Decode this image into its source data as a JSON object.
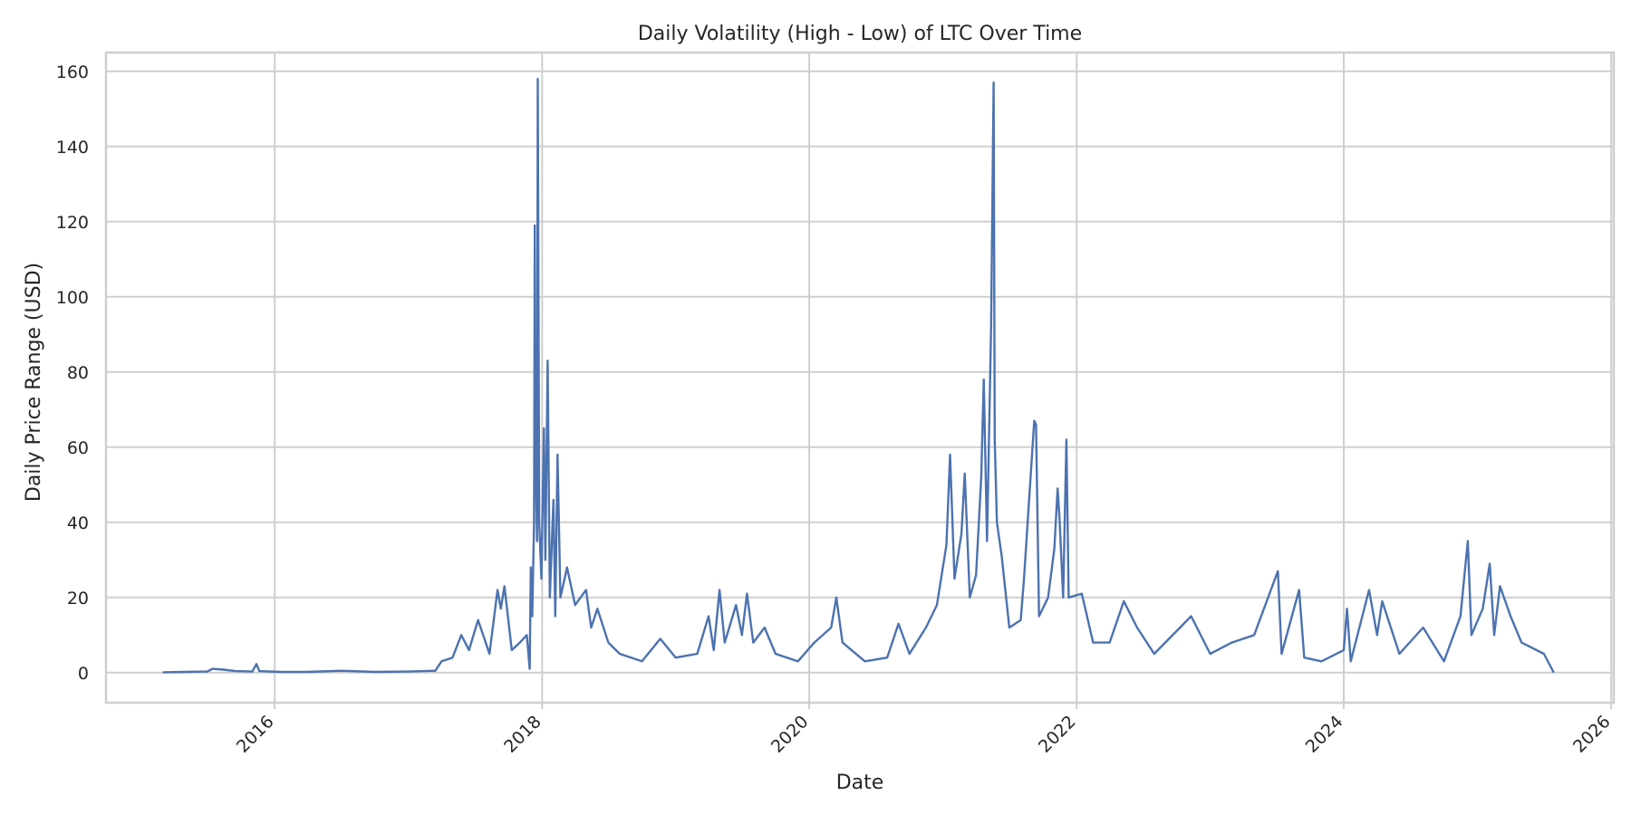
{
  "chart_data": {
    "type": "line",
    "title": "Daily Volatility (High - Low) of LTC Over Time",
    "xlabel": "Date",
    "ylabel": "Daily Price Range (USD)",
    "x_ticks": [
      "2016",
      "2018",
      "2020",
      "2022",
      "2024",
      "2026"
    ],
    "y_ticks": [
      "0",
      "20",
      "40",
      "60",
      "80",
      "100",
      "120",
      "140",
      "160"
    ],
    "xlim": [
      "2014-09-27",
      "2026-01-08"
    ],
    "ylim": [
      -8,
      165
    ],
    "grid": true,
    "legend": "none",
    "series": [
      {
        "color": "#4c72b0",
        "points": [
          [
            "2015-03-01",
            0.1
          ],
          [
            "2015-05-01",
            0.2
          ],
          [
            "2015-07-01",
            0.3
          ],
          [
            "2015-07-15",
            1.0
          ],
          [
            "2015-08-15",
            0.8
          ],
          [
            "2015-09-15",
            0.4
          ],
          [
            "2015-11-01",
            0.3
          ],
          [
            "2015-11-12",
            2.3
          ],
          [
            "2015-11-20",
            0.4
          ],
          [
            "2016-01-15",
            0.2
          ],
          [
            "2016-04-01",
            0.2
          ],
          [
            "2016-07-01",
            0.5
          ],
          [
            "2016-10-01",
            0.2
          ],
          [
            "2017-01-01",
            0.3
          ],
          [
            "2017-03-15",
            0.5
          ],
          [
            "2017-04-01",
            3.0
          ],
          [
            "2017-05-01",
            4.0
          ],
          [
            "2017-05-25",
            10.0
          ],
          [
            "2017-06-15",
            6.0
          ],
          [
            "2017-07-10",
            14.0
          ],
          [
            "2017-08-10",
            5.0
          ],
          [
            "2017-09-01",
            22.0
          ],
          [
            "2017-09-10",
            17.0
          ],
          [
            "2017-09-20",
            23.0
          ],
          [
            "2017-10-10",
            6.0
          ],
          [
            "2017-11-01",
            8.0
          ],
          [
            "2017-11-20",
            10.0
          ],
          [
            "2017-11-28",
            1.0
          ],
          [
            "2017-12-01",
            28.0
          ],
          [
            "2017-12-05",
            15.0
          ],
          [
            "2017-12-10",
            40.0
          ],
          [
            "2017-12-12",
            119.0
          ],
          [
            "2017-12-14",
            60.0
          ],
          [
            "2017-12-18",
            35.0
          ],
          [
            "2017-12-20",
            158.0
          ],
          [
            "2017-12-24",
            40.0
          ],
          [
            "2017-12-30",
            25.0
          ],
          [
            "2018-01-06",
            65.0
          ],
          [
            "2018-01-10",
            30.0
          ],
          [
            "2018-01-16",
            83.0
          ],
          [
            "2018-01-22",
            20.0
          ],
          [
            "2018-02-01",
            46.0
          ],
          [
            "2018-02-06",
            15.0
          ],
          [
            "2018-02-12",
            58.0
          ],
          [
            "2018-02-20",
            20.0
          ],
          [
            "2018-03-10",
            28.0
          ],
          [
            "2018-04-01",
            18.0
          ],
          [
            "2018-05-01",
            22.0
          ],
          [
            "2018-05-15",
            12.0
          ],
          [
            "2018-06-01",
            17.0
          ],
          [
            "2018-07-01",
            8.0
          ],
          [
            "2018-08-01",
            5.0
          ],
          [
            "2018-10-01",
            3.0
          ],
          [
            "2018-11-20",
            9.0
          ],
          [
            "2019-01-01",
            4.0
          ],
          [
            "2019-03-01",
            5.0
          ],
          [
            "2019-04-01",
            15.0
          ],
          [
            "2019-04-15",
            6.0
          ],
          [
            "2019-05-01",
            22.0
          ],
          [
            "2019-05-15",
            8.0
          ],
          [
            "2019-06-15",
            18.0
          ],
          [
            "2019-07-01",
            10.0
          ],
          [
            "2019-07-15",
            21.0
          ],
          [
            "2019-08-01",
            8.0
          ],
          [
            "2019-09-01",
            12.0
          ],
          [
            "2019-10-01",
            5.0
          ],
          [
            "2019-12-01",
            3.0
          ],
          [
            "2020-01-15",
            8.0
          ],
          [
            "2020-03-01",
            12.0
          ],
          [
            "2020-03-15",
            20.0
          ],
          [
            "2020-04-01",
            8.0
          ],
          [
            "2020-06-01",
            3.0
          ],
          [
            "2020-08-01",
            4.0
          ],
          [
            "2020-09-01",
            13.0
          ],
          [
            "2020-10-01",
            5.0
          ],
          [
            "2020-11-15",
            12.0
          ],
          [
            "2020-12-15",
            18.0
          ],
          [
            "2021-01-10",
            34.0
          ],
          [
            "2021-01-20",
            58.0
          ],
          [
            "2021-02-01",
            25.0
          ],
          [
            "2021-02-20",
            37.0
          ],
          [
            "2021-03-01",
            53.0
          ],
          [
            "2021-03-15",
            20.0
          ],
          [
            "2021-04-01",
            26.0
          ],
          [
            "2021-04-15",
            52.0
          ],
          [
            "2021-04-22",
            78.0
          ],
          [
            "2021-05-01",
            35.0
          ],
          [
            "2021-05-12",
            92.0
          ],
          [
            "2021-05-19",
            157.0
          ],
          [
            "2021-05-22",
            62.0
          ],
          [
            "2021-05-28",
            40.0
          ],
          [
            "2021-06-10",
            31.0
          ],
          [
            "2021-07-01",
            12.0
          ],
          [
            "2021-08-01",
            14.0
          ],
          [
            "2021-08-10",
            25.0
          ],
          [
            "2021-09-07",
            67.0
          ],
          [
            "2021-09-12",
            66.0
          ],
          [
            "2021-09-20",
            15.0
          ],
          [
            "2021-10-15",
            20.0
          ],
          [
            "2021-11-01",
            33.0
          ],
          [
            "2021-11-10",
            49.0
          ],
          [
            "2021-11-15",
            41.0
          ],
          [
            "2021-11-25",
            20.0
          ],
          [
            "2021-12-04",
            62.0
          ],
          [
            "2021-12-10",
            20.0
          ],
          [
            "2022-01-15",
            21.0
          ],
          [
            "2022-02-15",
            8.0
          ],
          [
            "2022-04-01",
            8.0
          ],
          [
            "2022-05-10",
            19.0
          ],
          [
            "2022-06-15",
            12.0
          ],
          [
            "2022-08-01",
            5.0
          ],
          [
            "2022-11-10",
            15.0
          ],
          [
            "2023-01-01",
            5.0
          ],
          [
            "2023-03-01",
            8.0
          ],
          [
            "2023-05-01",
            10.0
          ],
          [
            "2023-07-05",
            27.0
          ],
          [
            "2023-07-15",
            5.0
          ],
          [
            "2023-09-01",
            22.0
          ],
          [
            "2023-09-15",
            4.0
          ],
          [
            "2023-11-01",
            3.0
          ],
          [
            "2024-01-01",
            6.0
          ],
          [
            "2024-01-10",
            17.0
          ],
          [
            "2024-01-20",
            3.0
          ],
          [
            "2024-03-10",
            22.0
          ],
          [
            "2024-04-01",
            10.0
          ],
          [
            "2024-04-15",
            19.0
          ],
          [
            "2024-06-01",
            5.0
          ],
          [
            "2024-08-05",
            12.0
          ],
          [
            "2024-10-01",
            3.0
          ],
          [
            "2024-11-15",
            15.0
          ],
          [
            "2024-12-05",
            35.0
          ],
          [
            "2024-12-15",
            10.0
          ],
          [
            "2025-01-15",
            17.0
          ],
          [
            "2025-02-03",
            29.0
          ],
          [
            "2025-02-15",
            10.0
          ],
          [
            "2025-03-03",
            23.0
          ],
          [
            "2025-04-01",
            15.0
          ],
          [
            "2025-05-01",
            8.0
          ],
          [
            "2025-07-01",
            5.0
          ],
          [
            "2025-07-28",
            0.0
          ]
        ]
      }
    ]
  }
}
